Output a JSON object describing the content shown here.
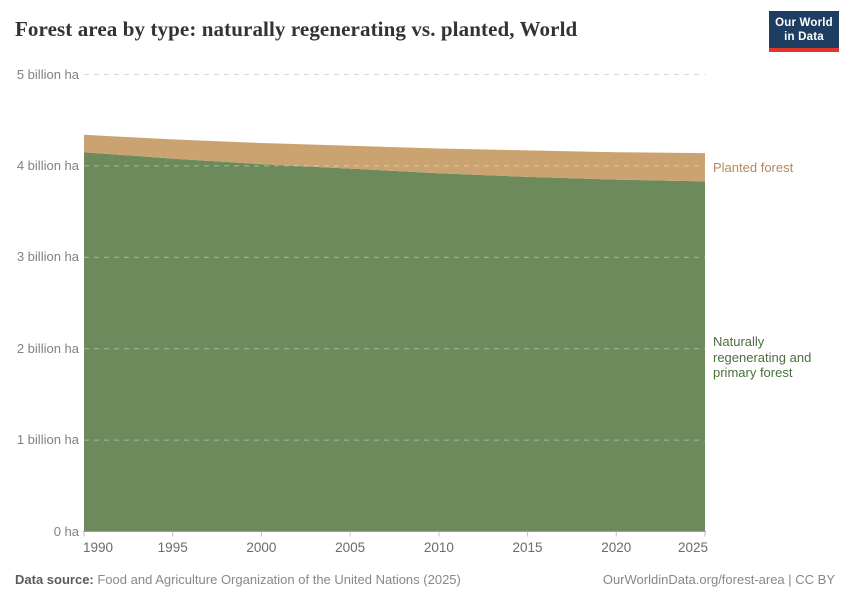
{
  "header": {
    "title": "Forest area by type: naturally regenerating vs. planted, World",
    "logo": {
      "line1": "Our World",
      "line2": "in Data"
    }
  },
  "chart_data": {
    "type": "area",
    "stacked": true,
    "title": "Forest area by type: naturally regenerating vs. planted, World",
    "x": [
      1990,
      1995,
      2000,
      2005,
      2010,
      2015,
      2020,
      2025
    ],
    "x_tick_labels": [
      "1990",
      "1995",
      "2000",
      "2005",
      "2010",
      "2015",
      "2020",
      "2025"
    ],
    "unit": "billion ha",
    "ylim": [
      0,
      5
    ],
    "y_ticks": [
      {
        "value": 5,
        "label": "5 billion ha"
      },
      {
        "value": 4,
        "label": "4 billion ha"
      },
      {
        "value": 3,
        "label": "3 billion ha"
      },
      {
        "value": 2,
        "label": "2 billion ha"
      },
      {
        "value": 1,
        "label": "1 billion ha"
      },
      {
        "value": 0,
        "label": "0 ha"
      }
    ],
    "series": [
      {
        "name": "Naturally regenerating and primary forest",
        "color": "#6d8a5c",
        "label_color": "#4a7040",
        "values": [
          4.15,
          4.08,
          4.02,
          3.97,
          3.92,
          3.88,
          3.85,
          3.83
        ]
      },
      {
        "name": "Planted forest",
        "color": "#cba371",
        "label_color": "#b3885a",
        "values": [
          0.19,
          0.21,
          0.23,
          0.25,
          0.27,
          0.29,
          0.3,
          0.31
        ]
      }
    ],
    "grid": true,
    "legend_position": "right-inline"
  },
  "footer": {
    "source_label": "Data source:",
    "source_text": " Food and Agriculture Organization of the United Nations (2025)",
    "citation": "OurWorldinData.org/forest-area | CC BY"
  },
  "colors": {
    "accent_navy": "#1d3d63",
    "accent_red": "#e0362c",
    "grid_line": "#d6d6d6",
    "grid_line_over_area": "rgba(255,255,255,0.4)",
    "axis_line": "#9e9e9e",
    "tick_mark": "#c2c2c2"
  }
}
